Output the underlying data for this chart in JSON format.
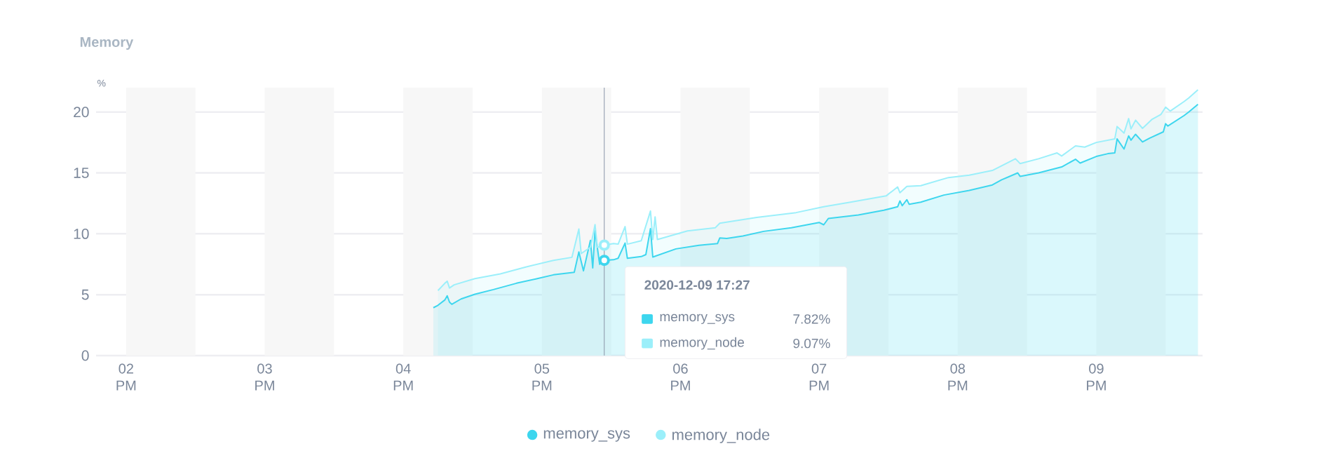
{
  "chart_data": {
    "type": "area",
    "title": "Memory",
    "ylabel": "%",
    "xlim": [
      "2020-12-09T13:47",
      "2020-12-09T21:46"
    ],
    "ylim": [
      0,
      22
    ],
    "xticks": [
      {
        "value": "2020-12-09T14:00",
        "label": "02 PM"
      },
      {
        "value": "2020-12-09T15:00",
        "label": "03 PM"
      },
      {
        "value": "2020-12-09T16:00",
        "label": "04 PM"
      },
      {
        "value": "2020-12-09T17:00",
        "label": "05 PM"
      },
      {
        "value": "2020-12-09T18:00",
        "label": "06 PM"
      },
      {
        "value": "2020-12-09T19:00",
        "label": "07 PM"
      },
      {
        "value": "2020-12-09T20:00",
        "label": "08 PM"
      },
      {
        "value": "2020-12-09T21:00",
        "label": "09 PM"
      }
    ],
    "yticks": [
      0,
      5,
      10,
      15,
      20
    ],
    "grid": "y",
    "legend": "bottom",
    "bands": [
      {
        "axis": "x",
        "from": "2020-12-09T14:00",
        "to": "2020-12-09T14:30",
        "color": "#f7f7f7"
      },
      {
        "axis": "x",
        "from": "2020-12-09T15:00",
        "to": "2020-12-09T15:30",
        "color": "#f7f7f7"
      },
      {
        "axis": "x",
        "from": "2020-12-09T16:00",
        "to": "2020-12-09T16:30",
        "color": "#f7f7f7"
      },
      {
        "axis": "x",
        "from": "2020-12-09T17:00",
        "to": "2020-12-09T17:30",
        "color": "#f7f7f7"
      },
      {
        "axis": "x",
        "from": "2020-12-09T18:00",
        "to": "2020-12-09T18:30",
        "color": "#f7f7f7"
      },
      {
        "axis": "x",
        "from": "2020-12-09T19:00",
        "to": "2020-12-09T19:30",
        "color": "#f7f7f7"
      },
      {
        "axis": "x",
        "from": "2020-12-09T20:00",
        "to": "2020-12-09T20:30",
        "color": "#f7f7f7"
      },
      {
        "axis": "x",
        "from": "2020-12-09T21:00",
        "to": "2020-12-09T21:30",
        "color": "#f7f7f7"
      }
    ],
    "ref_lines": [
      {
        "axis": "x",
        "value": "2020-12-09T17:27",
        "color": "#8a96a8"
      }
    ],
    "annotations": [
      "2020-12-09 17:27",
      "7.82%",
      "9.07%"
    ],
    "series": [
      {
        "name": "memory_sys",
        "color": "#3dd6ee",
        "x": [
          "2020-12-09T16:13",
          "2020-12-09T16:15",
          "2020-12-09T16:18",
          "2020-12-09T16:19",
          "2020-12-09T16:20",
          "2020-12-09T16:21",
          "2020-12-09T16:25",
          "2020-12-09T16:31",
          "2020-12-09T16:39",
          "2020-12-09T16:49",
          "2020-12-09T16:58",
          "2020-12-09T17:05",
          "2020-12-09T17:14",
          "2020-12-09T17:16",
          "2020-12-09T17:18",
          "2020-12-09T17:21",
          "2020-12-09T17:22",
          "2020-12-09T17:23",
          "2020-12-09T17:25",
          "2020-12-09T17:27",
          "2020-12-09T17:31",
          "2020-12-09T17:33",
          "2020-12-09T17:36",
          "2020-12-09T17:37",
          "2020-12-09T17:43",
          "2020-12-09T17:45",
          "2020-12-09T17:47",
          "2020-12-09T17:48",
          "2020-12-09T17:58",
          "2020-12-09T18:08",
          "2020-12-09T18:16",
          "2020-12-09T18:17",
          "2020-12-09T18:20",
          "2020-12-09T18:27",
          "2020-12-09T18:36",
          "2020-12-09T18:48",
          "2020-12-09T19:00",
          "2020-12-09T19:02",
          "2020-12-09T19:04",
          "2020-12-09T19:17",
          "2020-12-09T19:28",
          "2020-12-09T19:34",
          "2020-12-09T19:35",
          "2020-12-09T19:36",
          "2020-12-09T19:38",
          "2020-12-09T19:39",
          "2020-12-09T19:44",
          "2020-12-09T19:54",
          "2020-12-09T20:05",
          "2020-12-09T20:15",
          "2020-12-09T20:19",
          "2020-12-09T20:26",
          "2020-12-09T20:27",
          "2020-12-09T20:35",
          "2020-12-09T20:45",
          "2020-12-09T20:51",
          "2020-12-09T20:53",
          "2020-12-09T21:00",
          "2020-12-09T21:05",
          "2020-12-09T21:08",
          "2020-12-09T21:09",
          "2020-12-09T21:12",
          "2020-12-09T21:14",
          "2020-12-09T21:15",
          "2020-12-09T21:17",
          "2020-12-09T21:20",
          "2020-12-09T21:23",
          "2020-12-09T21:29",
          "2020-12-09T21:30",
          "2020-12-09T21:31",
          "2020-12-09T21:38",
          "2020-12-09T21:40",
          "2020-12-09T21:44"
        ],
        "values": [
          3.93,
          4.13,
          4.57,
          4.91,
          4.39,
          4.21,
          4.65,
          5.04,
          5.42,
          5.94,
          6.32,
          6.63,
          6.84,
          8.51,
          6.96,
          9.46,
          7.2,
          10.23,
          7.5,
          7.82,
          7.87,
          7.99,
          9.24,
          7.99,
          8.13,
          8.29,
          10.43,
          8.09,
          8.76,
          9.05,
          9.2,
          9.66,
          9.62,
          9.82,
          10.2,
          10.49,
          10.93,
          10.74,
          11.26,
          11.55,
          11.93,
          12.22,
          12.7,
          12.31,
          12.8,
          12.42,
          12.6,
          13.18,
          13.56,
          14.01,
          14.43,
          15.0,
          14.72,
          15.0,
          15.49,
          16.12,
          15.81,
          16.35,
          16.58,
          16.64,
          17.79,
          16.96,
          18.04,
          17.69,
          18.17,
          17.54,
          17.85,
          18.37,
          19.04,
          18.85,
          19.71,
          20.0,
          20.63
        ]
      },
      {
        "name": "memory_node",
        "color": "#9beffa",
        "x": [
          "2020-12-09T16:15",
          "2020-12-09T16:18",
          "2020-12-09T16:19",
          "2020-12-09T16:20",
          "2020-12-09T16:22",
          "2020-12-09T16:31",
          "2020-12-09T16:42",
          "2020-12-09T16:53",
          "2020-12-09T17:05",
          "2020-12-09T17:13",
          "2020-12-09T17:16",
          "2020-12-09T17:17",
          "2020-12-09T17:21",
          "2020-12-09T17:23",
          "2020-12-09T17:24",
          "2020-12-09T17:27",
          "2020-12-09T17:31",
          "2020-12-09T17:33",
          "2020-12-09T17:36",
          "2020-12-09T17:37",
          "2020-12-09T17:43",
          "2020-12-09T17:47",
          "2020-12-09T17:48",
          "2020-12-09T17:49",
          "2020-12-09T17:50",
          "2020-12-09T18:03",
          "2020-12-09T18:15",
          "2020-12-09T18:17",
          "2020-12-09T18:33",
          "2020-12-09T18:50",
          "2020-12-09T19:02",
          "2020-12-09T19:14",
          "2020-12-09T19:29",
          "2020-12-09T19:34",
          "2020-12-09T19:35",
          "2020-12-09T19:38",
          "2020-12-09T19:44",
          "2020-12-09T19:56",
          "2020-12-09T20:05",
          "2020-12-09T20:15",
          "2020-12-09T20:25",
          "2020-12-09T20:27",
          "2020-12-09T20:35",
          "2020-12-09T20:43",
          "2020-12-09T20:45",
          "2020-12-09T20:51",
          "2020-12-09T20:55",
          "2020-12-09T21:00",
          "2020-12-09T21:08",
          "2020-12-09T21:09",
          "2020-12-09T21:12",
          "2020-12-09T21:14",
          "2020-12-09T21:15",
          "2020-12-09T21:17",
          "2020-12-09T21:20",
          "2020-12-09T21:24",
          "2020-12-09T21:28",
          "2020-12-09T21:30",
          "2020-12-09T21:32",
          "2020-12-09T21:38",
          "2020-12-09T21:40",
          "2020-12-09T21:44"
        ],
        "values": [
          5.34,
          5.94,
          6.11,
          5.55,
          5.81,
          6.32,
          6.71,
          7.27,
          7.82,
          8.07,
          10.39,
          8.38,
          8.89,
          10.75,
          8.89,
          9.07,
          9.2,
          9.15,
          10.59,
          9.15,
          9.43,
          11.87,
          9.53,
          11.39,
          9.53,
          10.24,
          10.49,
          10.87,
          11.35,
          11.74,
          12.22,
          12.61,
          13.11,
          13.85,
          13.37,
          13.89,
          13.95,
          14.62,
          14.81,
          15.2,
          16.16,
          15.77,
          16.16,
          16.64,
          16.39,
          17.22,
          17.12,
          17.5,
          17.79,
          18.81,
          18.27,
          19.46,
          18.62,
          19.33,
          18.66,
          19.38,
          19.81,
          20.4,
          20.08,
          20.86,
          21.15,
          21.83
        ]
      }
    ]
  }
}
